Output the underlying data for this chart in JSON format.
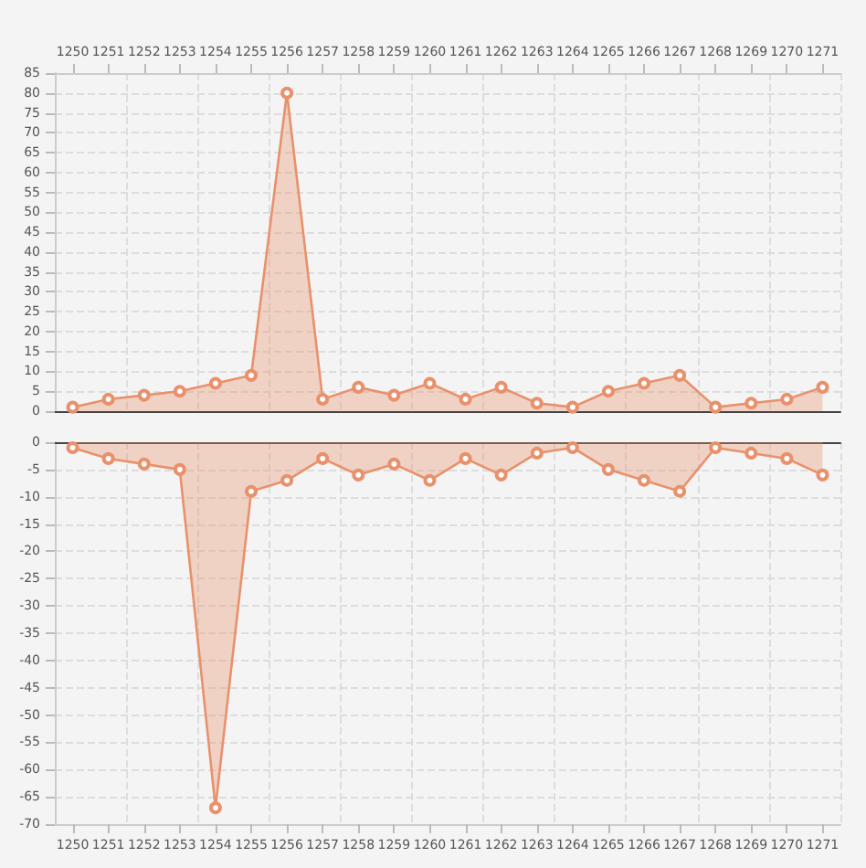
{
  "chart_data": [
    {
      "type": "area",
      "categories": [
        "1250",
        "1251",
        "1252",
        "1253",
        "1254",
        "1255",
        "1256",
        "1257",
        "1258",
        "1259",
        "1260",
        "1261",
        "1262",
        "1263",
        "1264",
        "1265",
        "1266",
        "1267",
        "1268",
        "1269",
        "1270",
        "1271"
      ],
      "series": [
        {
          "color": "#e8916c",
          "values": [
            1,
            3,
            4,
            5,
            7,
            9,
            80,
            3,
            6,
            4,
            7,
            3,
            6,
            2,
            1,
            5,
            7,
            9,
            1,
            2,
            3,
            6
          ]
        }
      ],
      "ylim": [
        0,
        85
      ],
      "yticks": [
        0,
        5,
        10,
        15,
        20,
        25,
        30,
        35,
        40,
        45,
        50,
        55,
        60,
        65,
        70,
        75,
        80,
        85
      ],
      "grid": true,
      "marker": "circle"
    },
    {
      "type": "area",
      "categories": [
        "1250",
        "1251",
        "1252",
        "1253",
        "1254",
        "1255",
        "1256",
        "1257",
        "1258",
        "1259",
        "1260",
        "1261",
        "1262",
        "1263",
        "1264",
        "1265",
        "1266",
        "1267",
        "1268",
        "1269",
        "1270",
        "1271"
      ],
      "series": [
        {
          "color": "#e8916c",
          "values": [
            -1,
            -3,
            -4,
            -5,
            -67,
            -9,
            -7,
            -3,
            -6,
            -4,
            -7,
            -3,
            -6,
            -2,
            -1,
            -5,
            -7,
            -9,
            -1,
            -2,
            -3,
            -6
          ]
        }
      ],
      "ylim": [
        -70,
        0
      ],
      "yticks": [
        0,
        -5,
        -10,
        -15,
        -20,
        -25,
        -30,
        -35,
        -40,
        -45,
        -50,
        -55,
        -60,
        -65,
        -70
      ],
      "grid": true,
      "marker": "circle"
    }
  ]
}
